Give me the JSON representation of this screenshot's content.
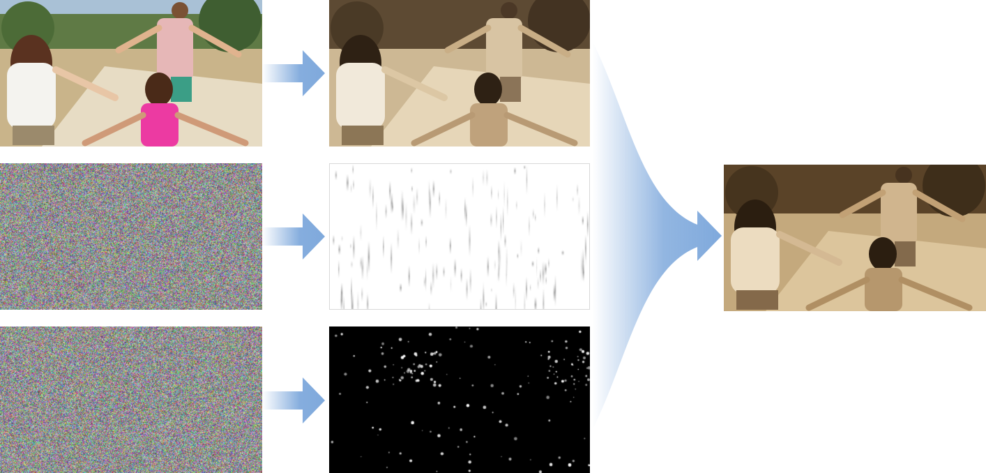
{
  "figure": {
    "description_visible_text": "",
    "rows": [
      {
        "input": "source-photo",
        "output": "sepia-photo"
      },
      {
        "input": "random-noise",
        "output": "rain-streaks"
      },
      {
        "input": "random-noise",
        "output": "sparkle-particles"
      }
    ],
    "result": "sepia-photo-with-effects",
    "colors": {
      "arrow": "#7fa9dc",
      "sepia_light": "#e6d6b8",
      "sepia_dark": "#4a3722",
      "noise_bg": "#8c8c8c",
      "particles_bg": "#000000"
    }
  }
}
